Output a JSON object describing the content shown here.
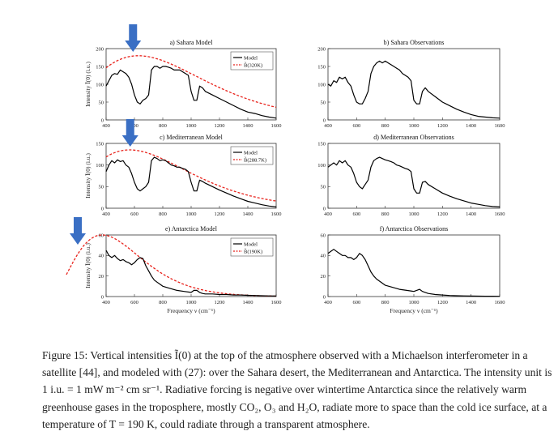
{
  "caption": {
    "label": "Figure 15:",
    "text": "Vertical intensities Ĩ(0) at the top of the atmosphere observed with a Michaelson interferometer in a satellite [44], and modeled with (27): over the Sahara desert, the Mediterranean and Antarctica. The intensity unit is 1 i.u. = 1 mW m⁻² cm sr⁻¹. Radiative forcing is negative over wintertime Antarctica since the relatively warm greenhouse gases in the troposphere, mostly CO₂, O₃ and H₂O, radiate more to space than the cold ice surface, at a temperature of T = 190 K, could radiate through a transparent atmosphere."
  },
  "ylabel": "Intensity Ĩ(0) (i.u.)",
  "xlabel": "Frequency ν (cm⁻¹)",
  "colors": {
    "model": "#000000",
    "planck": "#e8221b",
    "arrow": "#3a6fc4"
  },
  "arrow_icon": "down-arrow-icon",
  "chart_data": [
    {
      "id": "a",
      "type": "line",
      "title": "a) Sahara Model",
      "xlim": [
        400,
        1600
      ],
      "ylim": [
        0,
        200
      ],
      "xticks": [
        400,
        600,
        800,
        1000,
        1200,
        1400,
        1600
      ],
      "yticks": [
        0,
        50,
        100,
        150,
        200
      ],
      "legend": [
        "Model",
        "B̃(320K)"
      ],
      "legend_loc": "top-right",
      "planck_T": 320,
      "arrow_at": 590,
      "show_ylabel": true,
      "show_xlabel": false,
      "series": {
        "x": [
          400,
          420,
          440,
          460,
          480,
          500,
          520,
          540,
          560,
          580,
          600,
          620,
          640,
          660,
          680,
          700,
          720,
          740,
          760,
          780,
          800,
          820,
          840,
          860,
          880,
          900,
          920,
          940,
          960,
          980,
          1000,
          1020,
          1040,
          1060,
          1080,
          1100,
          1150,
          1200,
          1250,
          1300,
          1350,
          1400,
          1450,
          1500,
          1550,
          1600
        ],
        "y": [
          95,
          110,
          125,
          130,
          128,
          140,
          135,
          130,
          120,
          100,
          70,
          50,
          45,
          55,
          60,
          70,
          140,
          150,
          150,
          145,
          150,
          150,
          148,
          145,
          140,
          140,
          140,
          135,
          130,
          125,
          80,
          55,
          55,
          95,
          90,
          80,
          70,
          60,
          50,
          40,
          30,
          22,
          18,
          12,
          8,
          5
        ]
      }
    },
    {
      "id": "b",
      "type": "line",
      "title": "b) Sahara Observations",
      "xlim": [
        400,
        1600
      ],
      "ylim": [
        0,
        200
      ],
      "xticks": [
        400,
        600,
        800,
        1000,
        1200,
        1400,
        1600
      ],
      "yticks": [
        0,
        50,
        100,
        150,
        200
      ],
      "show_ylabel": false,
      "show_xlabel": false,
      "series": {
        "x": [
          400,
          420,
          440,
          460,
          480,
          500,
          520,
          540,
          560,
          580,
          600,
          620,
          640,
          660,
          680,
          700,
          720,
          740,
          760,
          780,
          800,
          820,
          840,
          860,
          880,
          900,
          920,
          940,
          960,
          980,
          1000,
          1020,
          1040,
          1060,
          1080,
          1100,
          1150,
          1200,
          1250,
          1300,
          1350,
          1400,
          1450,
          1500,
          1550,
          1600
        ],
        "y": [
          100,
          95,
          110,
          105,
          120,
          115,
          120,
          105,
          95,
          70,
          50,
          45,
          45,
          60,
          80,
          130,
          150,
          160,
          165,
          160,
          165,
          160,
          155,
          150,
          145,
          140,
          130,
          125,
          120,
          110,
          55,
          45,
          45,
          80,
          90,
          80,
          65,
          50,
          40,
          30,
          22,
          15,
          10,
          8,
          6,
          5
        ]
      }
    },
    {
      "id": "c",
      "type": "line",
      "title": "c) Mediterranean Model",
      "xlim": [
        400,
        1600
      ],
      "ylim": [
        0,
        150
      ],
      "xticks": [
        400,
        600,
        800,
        1000,
        1200,
        1400,
        1600
      ],
      "yticks": [
        0,
        50,
        100,
        150
      ],
      "legend": [
        "Model",
        "B̃(288.7K)"
      ],
      "legend_loc": "top-right",
      "planck_T": 288.7,
      "arrow_at": 570,
      "show_ylabel": true,
      "show_xlabel": false,
      "series": {
        "x": [
          400,
          420,
          440,
          460,
          480,
          500,
          520,
          540,
          560,
          580,
          600,
          620,
          640,
          660,
          680,
          700,
          720,
          740,
          760,
          780,
          800,
          820,
          840,
          860,
          880,
          900,
          920,
          940,
          960,
          980,
          1000,
          1020,
          1040,
          1060,
          1080,
          1100,
          1150,
          1200,
          1250,
          1300,
          1350,
          1400,
          1450,
          1500,
          1550,
          1600
        ],
        "y": [
          85,
          100,
          110,
          105,
          112,
          108,
          110,
          100,
          95,
          80,
          60,
          45,
          40,
          45,
          50,
          60,
          110,
          118,
          115,
          110,
          112,
          110,
          105,
          100,
          98,
          95,
          95,
          92,
          90,
          85,
          60,
          40,
          40,
          65,
          62,
          58,
          50,
          42,
          35,
          28,
          22,
          16,
          12,
          8,
          5,
          3
        ]
      }
    },
    {
      "id": "d",
      "type": "line",
      "title": "d) Mediterranean Observations",
      "xlim": [
        400,
        1600
      ],
      "ylim": [
        0,
        150
      ],
      "xticks": [
        400,
        600,
        800,
        1000,
        1200,
        1400,
        1600
      ],
      "yticks": [
        0,
        50,
        100,
        150
      ],
      "show_ylabel": false,
      "show_xlabel": false,
      "series": {
        "x": [
          400,
          420,
          440,
          460,
          480,
          500,
          520,
          540,
          560,
          580,
          600,
          620,
          640,
          660,
          680,
          700,
          720,
          740,
          760,
          780,
          800,
          820,
          840,
          860,
          880,
          900,
          920,
          940,
          960,
          980,
          1000,
          1020,
          1040,
          1060,
          1080,
          1100,
          1150,
          1200,
          1250,
          1300,
          1350,
          1400,
          1450,
          1500,
          1550,
          1600
        ],
        "y": [
          95,
          100,
          105,
          100,
          110,
          105,
          110,
          100,
          95,
          80,
          60,
          50,
          45,
          55,
          65,
          95,
          110,
          115,
          118,
          115,
          112,
          110,
          108,
          105,
          100,
          98,
          95,
          92,
          90,
          85,
          45,
          35,
          35,
          60,
          62,
          55,
          45,
          35,
          28,
          22,
          17,
          12,
          9,
          6,
          4,
          3
        ]
      }
    },
    {
      "id": "e",
      "type": "line",
      "title": "e) Antarctica Model",
      "xlim": [
        400,
        1600
      ],
      "ylim": [
        0,
        60
      ],
      "xticks": [
        400,
        600,
        800,
        1000,
        1200,
        1400,
        1600
      ],
      "yticks": [
        0,
        20,
        40,
        60
      ],
      "legend": [
        "Model",
        "B̃(190K)"
      ],
      "legend_loc": "top-right",
      "planck_T": 190,
      "arrow_at": 340,
      "show_ylabel": true,
      "show_xlabel": true,
      "series": {
        "x": [
          400,
          420,
          440,
          460,
          480,
          500,
          520,
          540,
          560,
          580,
          600,
          620,
          640,
          660,
          680,
          700,
          720,
          740,
          760,
          780,
          800,
          850,
          900,
          950,
          1000,
          1020,
          1040,
          1060,
          1080,
          1100,
          1150,
          1200,
          1250,
          1300,
          1350,
          1400,
          1450,
          1500,
          1550,
          1600
        ],
        "y": [
          45,
          40,
          38,
          40,
          37,
          35,
          36,
          34,
          33,
          31,
          33,
          36,
          38,
          37,
          30,
          25,
          20,
          16,
          14,
          12,
          10,
          8,
          6,
          5,
          4,
          6,
          6,
          4,
          3,
          2.5,
          2.5,
          2,
          2,
          1.5,
          1.5,
          1.2,
          1,
          0.8,
          0.6,
          0.5
        ]
      }
    },
    {
      "id": "f",
      "type": "line",
      "title": "f) Antarctica Observations",
      "xlim": [
        400,
        1600
      ],
      "ylim": [
        0,
        60
      ],
      "xticks": [
        400,
        600,
        800,
        1000,
        1200,
        1400,
        1600
      ],
      "yticks": [
        0,
        20,
        40,
        60
      ],
      "show_ylabel": false,
      "show_xlabel": true,
      "series": {
        "x": [
          400,
          420,
          440,
          460,
          480,
          500,
          520,
          540,
          560,
          580,
          600,
          620,
          640,
          660,
          680,
          700,
          720,
          740,
          760,
          780,
          800,
          850,
          900,
          950,
          1000,
          1020,
          1040,
          1060,
          1080,
          1100,
          1150,
          1200,
          1250,
          1300,
          1350,
          1400,
          1450,
          1500,
          1550,
          1600
        ],
        "y": [
          42,
          44,
          46,
          44,
          42,
          40,
          40,
          38,
          38,
          36,
          38,
          42,
          40,
          36,
          30,
          24,
          20,
          17,
          15,
          13,
          11,
          9,
          7,
          6,
          5,
          6,
          7,
          5,
          4,
          3,
          2,
          1.5,
          1,
          0.8,
          0.6,
          0.5,
          0.4,
          0.3,
          0.3,
          0.2
        ]
      }
    }
  ]
}
